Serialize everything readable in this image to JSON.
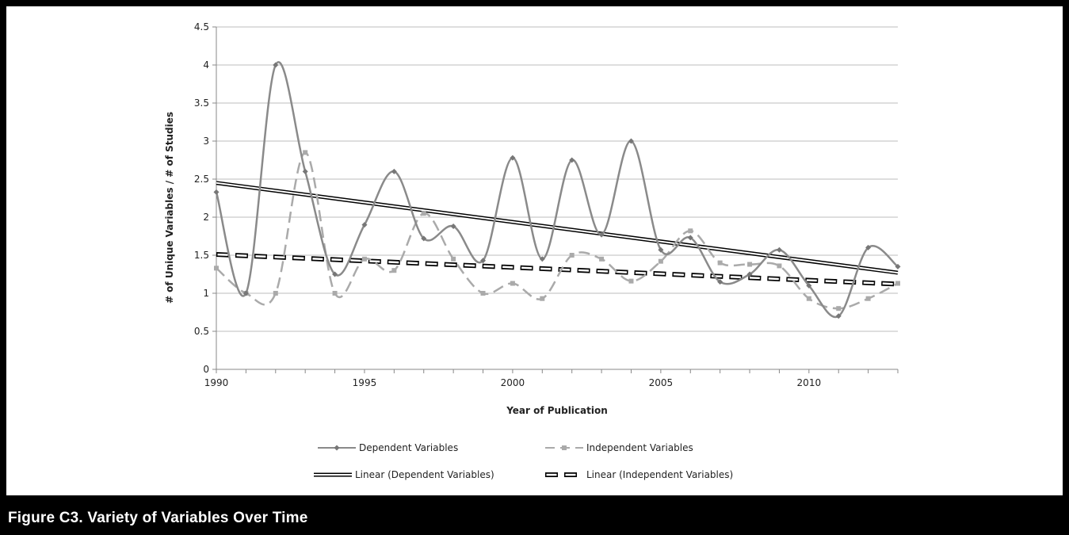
{
  "figure_caption": "Figure C3.  Variety of Variables Over Time",
  "colors": {
    "background_frame": "#000000",
    "panel": "#ffffff",
    "dependent": "#8a8a8a",
    "independent": "#aaaaaa",
    "trend": "#000000",
    "grid": "#bdbdbd"
  },
  "chart_data": {
    "type": "line",
    "title": "",
    "xlabel": "Year of Publication",
    "ylabel": "# of Unique Variables / # of Studies",
    "xlim": [
      1990,
      2013
    ],
    "ylim": [
      0,
      4.5
    ],
    "x_ticks": [
      1990,
      1995,
      2000,
      2005,
      2010
    ],
    "x_tick_labels": [
      "1990",
      "1995",
      "2000",
      "2005",
      "2010"
    ],
    "y_ticks": [
      0,
      0.5,
      1,
      1.5,
      2,
      2.5,
      3,
      3.5,
      4,
      4.5
    ],
    "y_tick_labels": [
      "0",
      "0.5",
      "1",
      "1.5",
      "2",
      "2.5",
      "3",
      "3.5",
      "4",
      "4.5"
    ],
    "grid": "horizontal",
    "legend_position": "bottom",
    "x": [
      1990,
      1991,
      1992,
      1993,
      1994,
      1995,
      1996,
      1997,
      1998,
      1999,
      2000,
      2001,
      2002,
      2003,
      2004,
      2005,
      2006,
      2007,
      2008,
      2009,
      2010,
      2011,
      2012,
      2013
    ],
    "series": [
      {
        "name": "Dependent Variables",
        "style": "solid-diamond-smooth",
        "values": [
          2.33,
          1.0,
          4.0,
          2.6,
          1.25,
          1.9,
          2.6,
          1.72,
          1.88,
          1.43,
          2.78,
          1.45,
          2.75,
          1.77,
          3.0,
          1.57,
          1.73,
          1.15,
          1.25,
          1.57,
          1.1,
          0.7,
          1.6,
          1.35
        ]
      },
      {
        "name": "Independent Variables",
        "style": "dashed-square-smooth",
        "values": [
          1.33,
          1.0,
          1.0,
          2.85,
          1.0,
          1.45,
          1.3,
          2.05,
          1.45,
          1.0,
          1.13,
          0.93,
          1.5,
          1.45,
          1.16,
          1.42,
          1.82,
          1.4,
          1.38,
          1.36,
          0.93,
          0.8,
          0.93,
          1.13
        ]
      },
      {
        "name": "Linear (Dependent Variables)",
        "style": "double-line",
        "trend": [
          2.45,
          1.27
        ]
      },
      {
        "name": "Linear (Independent Variables)",
        "style": "dashed-outline",
        "trend": [
          1.51,
          1.12
        ]
      }
    ]
  }
}
